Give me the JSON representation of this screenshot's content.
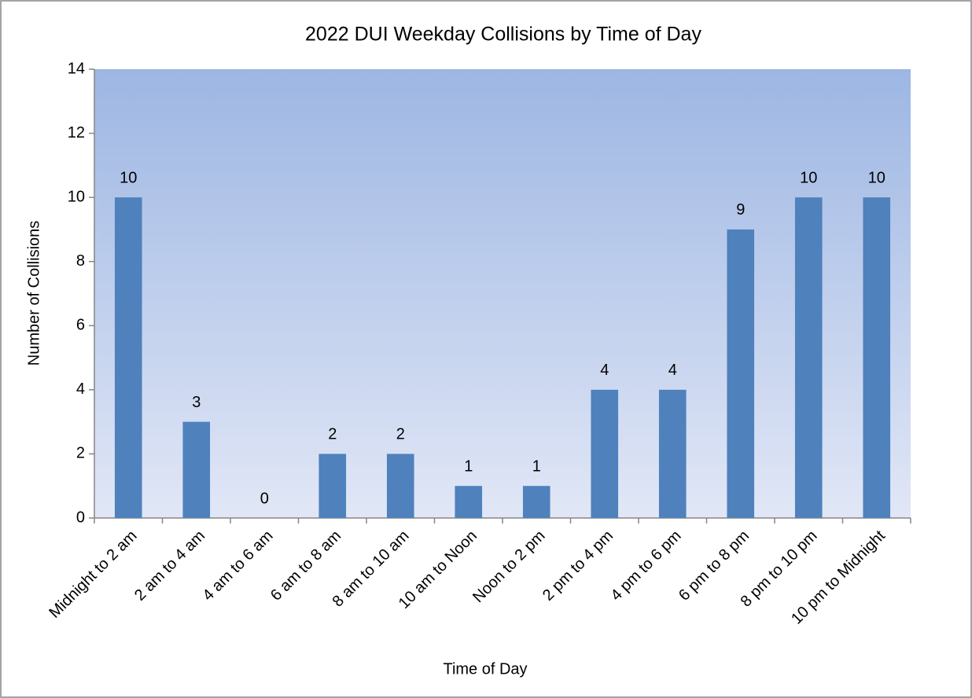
{
  "chart_data": {
    "type": "bar",
    "title": "2022 DUI Weekday Collisions by Time of Day",
    "x_label": "Time of Day",
    "y_label": "Number of Collisions",
    "categories": [
      "Midnight to 2 am",
      "2 am to 4 am",
      "4 am to 6 am",
      "6 am to 8 am",
      "8 am to 10 am",
      "10 am to Noon",
      "Noon to 2 pm",
      "2 pm to 4 pm",
      "4 pm to 6 pm",
      "6 pm to 8 pm",
      "8 pm to 10 pm",
      "10 pm to Midnight"
    ],
    "values": [
      10,
      3,
      0,
      2,
      2,
      1,
      1,
      4,
      4,
      9,
      10,
      10
    ],
    "color": "#4f81bd",
    "ylim": [
      0,
      14
    ],
    "yticks": [
      0,
      2,
      4,
      6,
      8,
      10,
      12,
      14
    ],
    "grid": false
  }
}
